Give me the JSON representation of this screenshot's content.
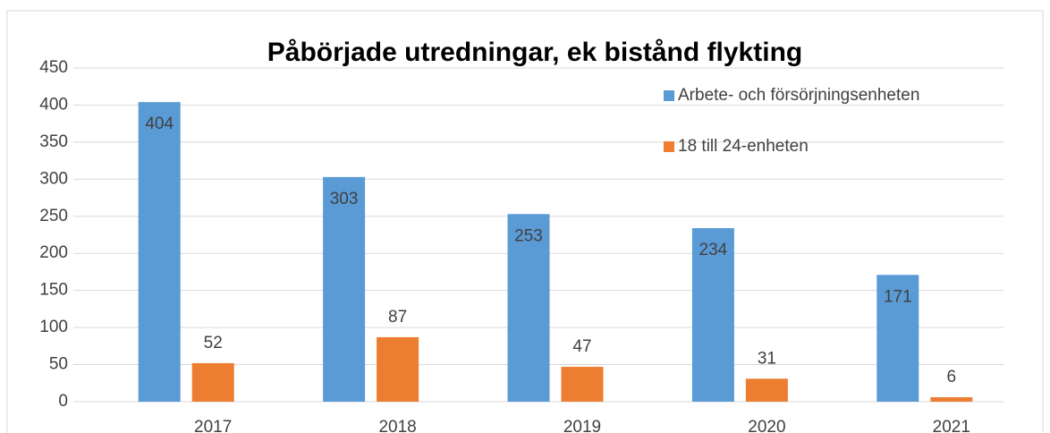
{
  "chart_data": {
    "type": "bar",
    "title": "Påbörjade utredningar, ek bistånd flykting",
    "categories": [
      "2017",
      "2018",
      "2019",
      "2020",
      "2021"
    ],
    "series": [
      {
        "name": "Arbete- och försörjningsenheten",
        "color": "#5b9bd5",
        "values": [
          404,
          303,
          253,
          234,
          171
        ]
      },
      {
        "name": "18 till 24-enheten",
        "color": "#ed7d31",
        "values": [
          52,
          87,
          47,
          31,
          6
        ]
      }
    ],
    "ylim": [
      0,
      450
    ],
    "yticks": [
      0,
      50,
      100,
      150,
      200,
      250,
      300,
      350,
      400,
      450
    ],
    "grid": true,
    "legend": "top-right"
  }
}
